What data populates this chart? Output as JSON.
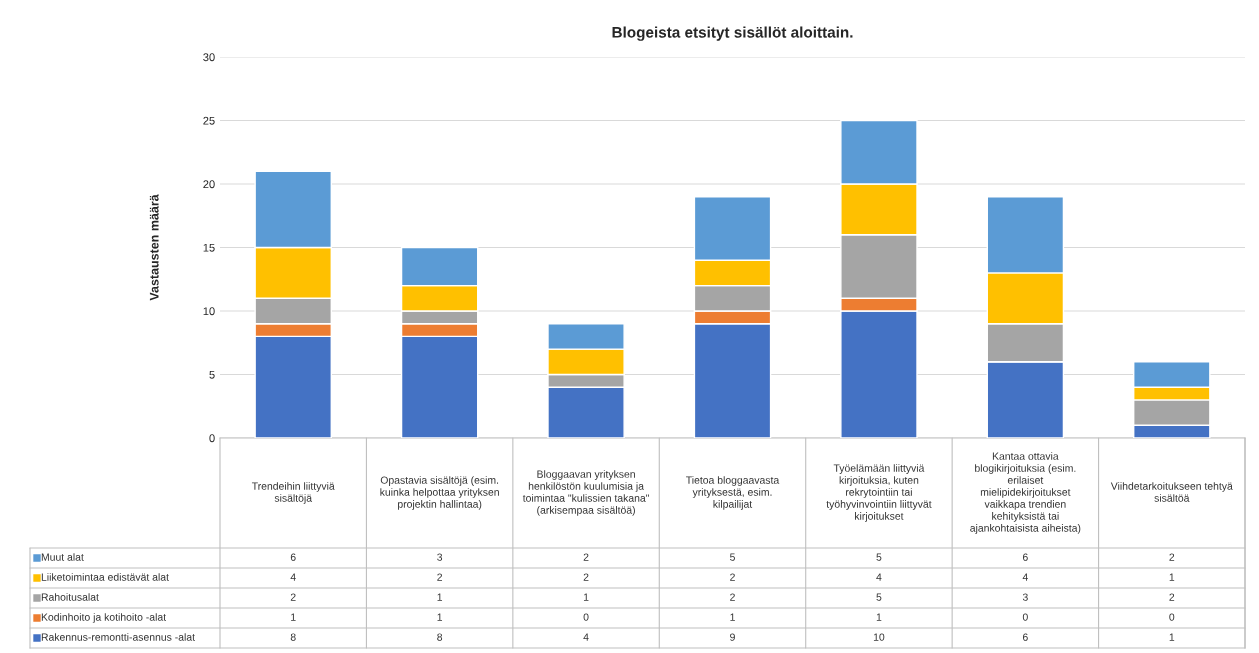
{
  "chart_data": {
    "type": "bar",
    "stacked": true,
    "title": "Blogeista etsityt sisällöt aloittain.",
    "ylabel": "Vastausten määrä",
    "categories": [
      "Trendeihin liittyviä sisältöjä",
      "Opastavia sisältöjä (esim. kuinka helpottaa yrityksen projektin hallintaa)",
      "Bloggaavan yrityksen henkilöstön kuulumisia ja toimintaa \"kulissien takana\" (arkisempaa sisältöä)",
      "Tietoa bloggaavasta yrityksestä, esim. kilpailijat",
      "Työelämään liittyviä kirjoituksia, kuten rekrytointiin tai työhyvinvointiin liittyvät kirjoitukset",
      "Kantaa ottavia blogikirjoituksia (esim. erilaiset mielipidekirjoitukset vaikkapa trendien kehityksistä tai ajankohtaisista aiheista)",
      "Viihdetarkoitukseen tehtyä sisältöä"
    ],
    "series": [
      {
        "name": "Rakennus-remontti-asennus -alat",
        "color": "#4472c4",
        "values": [
          8,
          8,
          4,
          9,
          10,
          6,
          1
        ]
      },
      {
        "name": "Kodinhoito ja kotihoito -alat",
        "color": "#ed7d31",
        "values": [
          1,
          1,
          0,
          1,
          1,
          0,
          0
        ]
      },
      {
        "name": "Rahoitusalat",
        "color": "#a5a5a5",
        "values": [
          2,
          1,
          1,
          2,
          5,
          3,
          2
        ]
      },
      {
        "name": "Liiketoimintaa edistävät alat",
        "color": "#ffc000",
        "values": [
          4,
          2,
          2,
          2,
          4,
          4,
          1
        ]
      },
      {
        "name": "Muut alat",
        "color": "#5b9bd5",
        "values": [
          6,
          3,
          2,
          5,
          5,
          6,
          2
        ]
      }
    ],
    "ylim": [
      0,
      30
    ],
    "yticks": [
      0,
      5,
      10,
      15,
      20,
      25,
      30
    ],
    "grid": "y",
    "legend": "bottom left",
    "data_labels": true
  }
}
